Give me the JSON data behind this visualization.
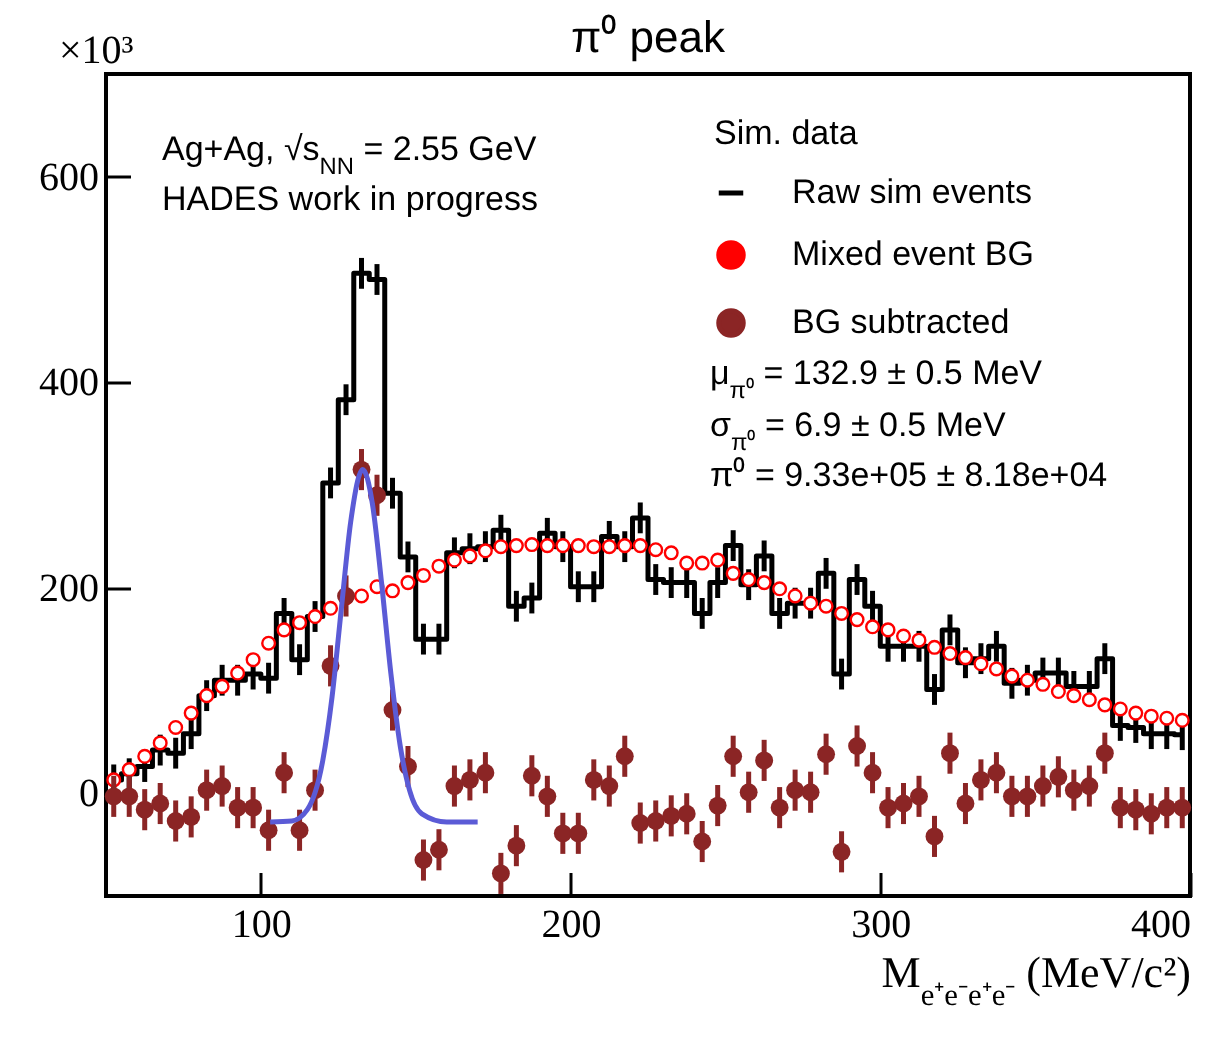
{
  "chart_data": {
    "type": "step",
    "title": "π⁰ peak",
    "xlabel": "M$_{e⁺e⁻e⁺e⁻}$ (MeV/c²)",
    "ylabel": "×10³",
    "legend_title": "Sim. data",
    "legend": "top right",
    "annotations": [
      "Ag+Ag, √s$_{NN}$ = 2.55 GeV",
      "HADES work in progress",
      "μ$_{π⁰}$ = 132.9 ± 0.5 MeV",
      "σ$_{π⁰}$ = 6.9 ± 0.5 MeV",
      "π⁰ = 9.33e+05 ± 8.18e+04"
    ],
    "xlim": [
      50,
      400
    ],
    "xticks": [
      100,
      200,
      300,
      400
    ],
    "ylim": [
      -100,
      700
    ],
    "yticks": [
      0,
      200,
      400,
      600
    ],
    "x": [
      52.5,
      57.5,
      62.5,
      67.5,
      72.5,
      77.5,
      82.5,
      87.5,
      92.5,
      97.5,
      102.5,
      107.5,
      112.5,
      117.5,
      122.5,
      127.5,
      132.5,
      137.5,
      142.5,
      147.5,
      152.5,
      157.5,
      162.5,
      167.5,
      172.5,
      177.5,
      182.5,
      187.5,
      192.5,
      197.5,
      202.5,
      207.5,
      212.5,
      217.5,
      222.5,
      227.5,
      232.5,
      237.5,
      242.5,
      247.5,
      252.5,
      257.5,
      262.5,
      267.5,
      272.5,
      277.5,
      282.5,
      287.5,
      292.5,
      297.5,
      302.5,
      307.5,
      312.5,
      317.5,
      322.5,
      327.5,
      332.5,
      337.5,
      342.5,
      347.5,
      352.5,
      357.5,
      362.5,
      367.5,
      372.5,
      377.5,
      382.5,
      387.5,
      392.5,
      397.5
    ],
    "series": [
      {
        "name": "Raw sim events",
        "type": "step",
        "color": "#000000",
        "values": [
          13,
          19,
          26,
          42,
          39,
          58,
          95,
          110,
          110,
          116,
          112,
          175,
          130,
          172,
          302,
          383,
          506,
          500,
          292,
          230,
          150,
          150,
          234,
          238,
          240,
          256,
          182,
          190,
          253,
          240,
          201,
          201,
          250,
          240,
          268,
          208,
          205,
          205,
          175,
          205,
          241,
          203,
          231,
          175,
          185,
          185,
          214,
          116,
          208,
          182,
          143,
          143,
          143,
          101,
          159,
          127,
          131,
          143,
          107,
          110,
          117,
          117,
          104,
          104,
          131,
          66,
          64,
          58,
          58,
          57
        ],
        "errors": [
          15,
          15,
          15,
          15,
          15,
          15,
          15,
          15,
          15,
          15,
          15,
          15,
          15,
          15,
          15,
          15,
          15,
          15,
          15,
          15,
          15,
          15,
          15,
          15,
          15,
          15,
          15,
          15,
          15,
          15,
          15,
          15,
          15,
          15,
          15,
          15,
          15,
          15,
          15,
          15,
          15,
          15,
          15,
          15,
          15,
          15,
          15,
          15,
          15,
          15,
          15,
          15,
          15,
          15,
          15,
          15,
          15,
          15,
          15,
          15,
          15,
          15,
          15,
          15,
          15,
          15,
          15,
          15,
          15,
          15
        ]
      },
      {
        "name": "Mixed event BG",
        "type": "scatter",
        "color": "#ff0000",
        "values": [
          13,
          23,
          36,
          49,
          64,
          78,
          95,
          104,
          117,
          130,
          146,
          159,
          166,
          172,
          180,
          190,
          192,
          201,
          197,
          205,
          212,
          221,
          227,
          231,
          236,
          240,
          241,
          242,
          241,
          241,
          241,
          240,
          240,
          241,
          241,
          237,
          234,
          224,
          224,
          227,
          214,
          208,
          205,
          199,
          192,
          185,
          182,
          175,
          169,
          162,
          159,
          153,
          149,
          142,
          136,
          132,
          126,
          121,
          114,
          110,
          106,
          99,
          95,
          91,
          86,
          82,
          78,
          75,
          73,
          71
        ]
      },
      {
        "name": "BG subtracted",
        "type": "scatter",
        "color": "#8b2525",
        "values": [
          -3,
          -3,
          -16,
          -10,
          -27,
          -23,
          3,
          7,
          -14,
          -14,
          -36,
          20,
          -36,
          3,
          124,
          192,
          315,
          290,
          81,
          26,
          -65,
          -55,
          7,
          13,
          20,
          -78,
          -51,
          17,
          -3,
          -39,
          -39,
          13,
          7,
          36,
          -29,
          -27,
          -22,
          -20,
          -47,
          -12,
          36,
          1,
          32,
          -14,
          3,
          1,
          38,
          -57,
          46,
          20,
          -14,
          -10,
          -3,
          -42,
          39,
          -10,
          13,
          20,
          -3,
          -3,
          7,
          16,
          3,
          7,
          39,
          -14,
          -16,
          -20,
          -14,
          -14
        ],
        "errors": [
          20,
          20,
          20,
          20,
          20,
          20,
          20,
          20,
          20,
          20,
          20,
          20,
          20,
          20,
          20,
          20,
          20,
          20,
          20,
          20,
          20,
          20,
          20,
          20,
          20,
          20,
          20,
          20,
          20,
          20,
          20,
          20,
          20,
          20,
          20,
          20,
          20,
          20,
          20,
          20,
          20,
          20,
          20,
          20,
          20,
          20,
          20,
          20,
          20,
          20,
          20,
          20,
          20,
          20,
          20,
          20,
          20,
          20,
          20,
          20,
          20,
          20,
          20,
          20,
          20,
          20,
          20,
          20,
          20,
          20
        ]
      },
      {
        "type": "line",
        "color": "#5b5bd6",
        "x": [
          103,
          110,
          115,
          120,
          123,
          126,
          129,
          132.9,
          136,
          139,
          142,
          145,
          148,
          152,
          160,
          170
        ],
        "values": [
          -28,
          -27,
          -16,
          32,
          94,
          180,
          264,
          315,
          282,
          204,
          116,
          46,
          3,
          -20,
          -28,
          -28
        ]
      }
    ]
  }
}
